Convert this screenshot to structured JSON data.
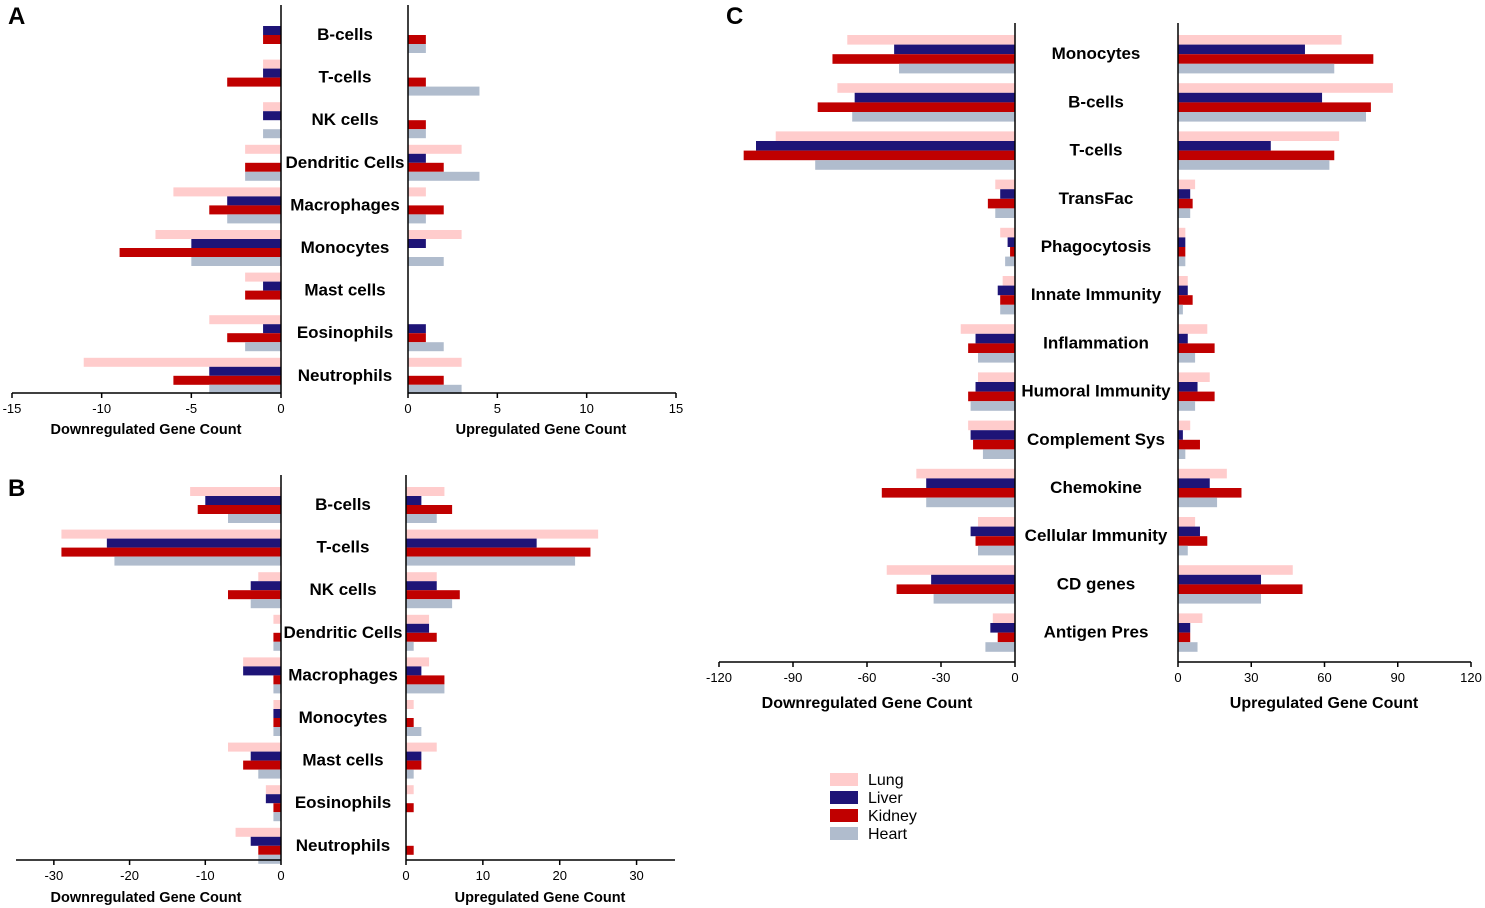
{
  "colors": {
    "Lung": "#ffcccc",
    "Liver": "#1e1477",
    "Kidney": "#c00000",
    "Heart": "#b0bccd"
  },
  "legend": {
    "entries": [
      "Lung",
      "Liver",
      "Kidney",
      "Heart"
    ]
  },
  "chart_data": [
    {
      "id": "A",
      "type": "bar",
      "orientation": "horizontal-butterfly",
      "categories": [
        "B-cells",
        "T-cells",
        "NK cells",
        "Dendritic Cells",
        "Macrophages",
        "Monocytes",
        "Mast cells",
        "Eosinophils",
        "Neutrophils"
      ],
      "series": [
        {
          "name": "Lung",
          "down": [
            0,
            1,
            1,
            2,
            6,
            7,
            2,
            4,
            11
          ],
          "up": [
            0,
            0,
            0,
            3,
            1,
            3,
            0,
            0,
            3
          ]
        },
        {
          "name": "Liver",
          "down": [
            1,
            1,
            1,
            0,
            3,
            5,
            1,
            1,
            4
          ],
          "up": [
            0,
            0,
            0,
            1,
            0,
            1,
            0,
            1,
            0
          ]
        },
        {
          "name": "Kidney",
          "down": [
            1,
            3,
            0,
            2,
            4,
            9,
            2,
            3,
            6
          ],
          "up": [
            1,
            1,
            1,
            2,
            2,
            0,
            0,
            1,
            2
          ]
        },
        {
          "name": "Heart",
          "down": [
            0,
            0,
            1,
            2,
            3,
            5,
            0,
            2,
            4
          ],
          "up": [
            1,
            4,
            1,
            4,
            1,
            2,
            0,
            2,
            3
          ]
        }
      ],
      "down_axis": {
        "lim": [
          -15,
          0
        ],
        "ticks": [
          -15,
          -10,
          -5,
          0
        ],
        "tick_labels": [
          "-15",
          "-10",
          "-5",
          "0"
        ],
        "label": "Downregulated Gene Count"
      },
      "up_axis": {
        "lim": [
          0,
          15
        ],
        "ticks": [
          0,
          5,
          10,
          15
        ],
        "tick_labels": [
          "0",
          "5",
          "10",
          "15"
        ],
        "label": "Upregulated Gene Count"
      }
    },
    {
      "id": "B",
      "type": "bar",
      "orientation": "horizontal-butterfly",
      "categories": [
        "B-cells",
        "T-cells",
        "NK cells",
        "Dendritic Cells",
        "Macrophages",
        "Monocytes",
        "Mast cells",
        "Eosinophils",
        "Neutrophils"
      ],
      "series": [
        {
          "name": "Lung",
          "down": [
            12,
            29,
            3,
            1,
            5,
            1,
            7,
            2,
            6
          ],
          "up": [
            5,
            25,
            4,
            3,
            3,
            1,
            4,
            1,
            0
          ]
        },
        {
          "name": "Liver",
          "down": [
            10,
            23,
            4,
            0,
            5,
            1,
            4,
            2,
            4
          ],
          "up": [
            2,
            17,
            4,
            3,
            2,
            0,
            2,
            0,
            0
          ]
        },
        {
          "name": "Kidney",
          "down": [
            11,
            29,
            7,
            1,
            1,
            1,
            5,
            1,
            3
          ],
          "up": [
            6,
            24,
            7,
            4,
            5,
            1,
            2,
            1,
            1
          ]
        },
        {
          "name": "Heart",
          "down": [
            7,
            22,
            4,
            1,
            1,
            1,
            3,
            1,
            3
          ],
          "up": [
            4,
            22,
            6,
            1,
            5,
            2,
            1,
            0,
            0
          ]
        }
      ],
      "down_axis": {
        "lim": [
          -35,
          0
        ],
        "ticks": [
          -30,
          -20,
          -10,
          0
        ],
        "tick_labels": [
          "-30",
          "-20",
          "-10",
          "0"
        ],
        "label": "Downregulated Gene Count"
      },
      "up_axis": {
        "lim": [
          0,
          35
        ],
        "ticks": [
          0,
          10,
          20,
          30
        ],
        "tick_labels": [
          "0",
          "10",
          "20",
          "30"
        ],
        "label": "Upregulated Gene Count"
      }
    },
    {
      "id": "C",
      "type": "bar",
      "orientation": "horizontal-butterfly",
      "categories": [
        "Monocytes",
        "B-cells",
        "T-cells",
        "TransFac",
        "Phagocytosis",
        "Innate Immunity",
        "Inflammation",
        "Humoral Immunity",
        "Complement Sys",
        "Chemokine",
        "Cellular Immunity",
        "CD genes",
        "Antigen Pres"
      ],
      "series": [
        {
          "name": "Lung",
          "down": [
            68,
            72,
            97,
            8,
            6,
            5,
            22,
            15,
            19,
            40,
            15,
            52,
            9
          ],
          "up": [
            67,
            88,
            66,
            7,
            3,
            4,
            12,
            13,
            5,
            20,
            7,
            47,
            10
          ]
        },
        {
          "name": "Liver",
          "down": [
            49,
            65,
            105,
            6,
            3,
            7,
            16,
            16,
            18,
            36,
            18,
            34,
            10
          ],
          "up": [
            52,
            59,
            38,
            5,
            3,
            4,
            4,
            8,
            2,
            13,
            9,
            34,
            5
          ]
        },
        {
          "name": "Kidney",
          "down": [
            74,
            80,
            110,
            11,
            2,
            6,
            19,
            19,
            17,
            54,
            16,
            48,
            7
          ],
          "up": [
            80,
            79,
            64,
            6,
            3,
            6,
            15,
            15,
            9,
            26,
            12,
            51,
            5
          ]
        },
        {
          "name": "Heart",
          "down": [
            47,
            66,
            81,
            8,
            4,
            6,
            15,
            18,
            13,
            36,
            15,
            33,
            12
          ],
          "up": [
            64,
            77,
            62,
            5,
            3,
            2,
            7,
            7,
            3,
            16,
            4,
            34,
            8
          ]
        }
      ],
      "down_axis": {
        "lim": [
          -120,
          0
        ],
        "ticks": [
          -120,
          -90,
          -60,
          -30,
          0
        ],
        "tick_labels": [
          "-120",
          "-90",
          "-60",
          "-30",
          "0"
        ],
        "label": "Downregulated Gene Count"
      },
      "up_axis": {
        "lim": [
          0,
          120
        ],
        "ticks": [
          0,
          30,
          60,
          90,
          120
        ],
        "tick_labels": [
          "0",
          "30",
          "60",
          "90",
          "120"
        ],
        "label": "Upregulated Gene Count"
      }
    }
  ]
}
